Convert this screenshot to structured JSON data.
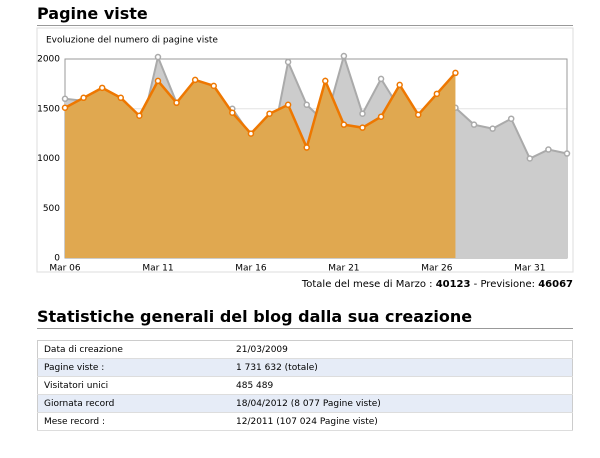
{
  "header": {
    "title": "Pagine viste"
  },
  "chart_data": {
    "type": "area",
    "title": "Evoluzione del numero di pagine viste",
    "categories": [
      "Mar 06",
      null,
      null,
      null,
      null,
      "Mar 11",
      null,
      null,
      null,
      null,
      "Mar 16",
      null,
      null,
      null,
      null,
      "Mar 21",
      null,
      null,
      null,
      null,
      "Mar 26",
      null,
      null,
      null,
      null,
      "Mar 31",
      null,
      null
    ],
    "series": [
      {
        "color": "#aaaaaa",
        "fill": "#cccccc",
        "values": [
          1600,
          1580,
          1460,
          1500,
          1210,
          2020,
          1560,
          1540,
          1450,
          1500,
          1230,
          1020,
          1970,
          1540,
          1360,
          2030,
          1450,
          1800,
          1500,
          1340,
          1440,
          1510,
          1340,
          1300,
          1400,
          1000,
          1090,
          1050
        ]
      },
      {
        "color": "#ee7700",
        "fill": "#e0a850",
        "values": [
          1510,
          1610,
          1710,
          1610,
          1430,
          1780,
          1560,
          1790,
          1730,
          1460,
          1250,
          1450,
          1540,
          1110,
          1780,
          1340,
          1310,
          1420,
          1740,
          1440,
          1650,
          1860,
          null,
          null,
          null,
          null,
          null,
          null
        ]
      }
    ],
    "ylim": [
      0,
      2000
    ],
    "yticks": [
      0,
      500,
      1000,
      1500,
      2000
    ],
    "grid": true
  },
  "summary": {
    "label": "Totale del mese di Marzo : ",
    "total": "40123",
    "separator": " - Previsione: ",
    "forecast": "46067"
  },
  "section": {
    "title": "Statistiche generali del blog dalla sua creazione"
  },
  "table": {
    "rows": [
      [
        "Data di creazione",
        "21/03/2009"
      ],
      [
        "Pagine viste :",
        "1 731 632 (totale)"
      ],
      [
        "Visitatori unici",
        "485 489"
      ],
      [
        "Giornata record",
        "18/04/2012 (8 077 Pagine viste)"
      ],
      [
        "Mese record :",
        "12/2011 (107 024 Pagine viste)"
      ]
    ]
  }
}
